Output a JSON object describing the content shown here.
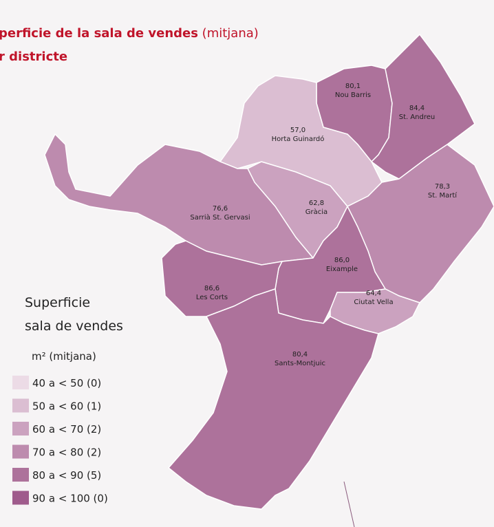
{
  "title": {
    "bold": "perficie de la sala de vendes",
    "normal": "(mitjana)",
    "line2": "r districte"
  },
  "legend": {
    "title_lines": [
      "Superficie",
      "sala de vendes"
    ],
    "unit": "m² (mitjana)",
    "items": [
      {
        "label": "40 a < 50 (0)",
        "color": "#ecdbe6"
      },
      {
        "label": "50  a < 60 (1)",
        "color": "#dbbed2"
      },
      {
        "label": "60 a < 70 (2)",
        "color": "#cba2bf"
      },
      {
        "label": "70 a < 80 (2)",
        "color": "#bd8bae"
      },
      {
        "label": "80 a < 90 (5)",
        "color": "#ad729b"
      },
      {
        "label": "90 a < 100 (0)",
        "color": "#9f5b8c"
      }
    ]
  },
  "districts": [
    {
      "name": "Nou Barris",
      "value": 80.1,
      "value_label": "80,1",
      "color": "#ad729b"
    },
    {
      "name": "St. Andreu",
      "value": 84.4,
      "value_label": "84,4",
      "color": "#ad729b"
    },
    {
      "name": "Horta Guinardó",
      "value": 57.0,
      "value_label": "57,0",
      "color": "#dbbed2"
    },
    {
      "name": "Gràcia",
      "value": 62.8,
      "value_label": "62,8",
      "color": "#cba2bf"
    },
    {
      "name": "Sarrià St. Gervasi",
      "value": 76.6,
      "value_label": "76,6",
      "color": "#bd8bae"
    },
    {
      "name": "St. Martí",
      "value": 78.3,
      "value_label": "78,3",
      "color": "#bd8bae"
    },
    {
      "name": "Eixample",
      "value": 86.0,
      "value_label": "86,0",
      "color": "#ad729b"
    },
    {
      "name": "Les Corts",
      "value": 86.6,
      "value_label": "86,6",
      "color": "#ad729b"
    },
    {
      "name": "Ciutat Vella",
      "value": 64.4,
      "value_label": "64,4",
      "color": "#cba2bf"
    },
    {
      "name": "Sants-Montjuic",
      "value": 80.4,
      "value_label": "80,4",
      "color": "#ad729b"
    }
  ]
}
